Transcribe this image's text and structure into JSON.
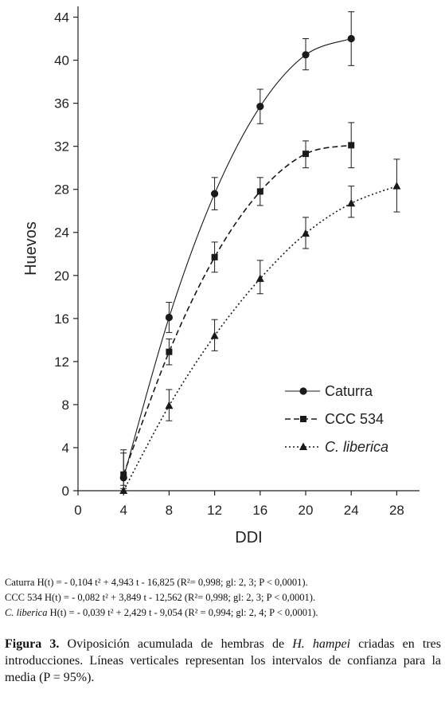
{
  "chart_data": {
    "type": "line",
    "xlabel": "DDI",
    "ylabel": "Huevos",
    "xlim": [
      0,
      30
    ],
    "ylim": [
      0,
      45
    ],
    "x_ticks": [
      0,
      4,
      8,
      12,
      16,
      20,
      24,
      28
    ],
    "y_ticks": [
      0,
      4,
      8,
      12,
      16,
      20,
      24,
      28,
      32,
      36,
      40,
      44
    ],
    "grid": false,
    "legend_position": "bottom-right",
    "series": [
      {
        "name": "Caturra",
        "marker": "circle",
        "line": "solid",
        "x": [
          4,
          8,
          12,
          16,
          20,
          24
        ],
        "y": [
          1.2,
          16.1,
          27.6,
          35.7,
          40.5,
          42.0
        ],
        "err_low": [
          0.2,
          14.7,
          26.1,
          34.1,
          39.1,
          39.5
        ],
        "err_high": [
          3.5,
          17.5,
          29.1,
          37.3,
          42.0,
          44.5
        ]
      },
      {
        "name": "CCC 534",
        "marker": "square",
        "line": "dashed",
        "x": [
          4,
          8,
          12,
          16,
          20,
          24
        ],
        "y": [
          1.5,
          12.9,
          21.7,
          27.8,
          31.3,
          32.1
        ],
        "err_low": [
          0.5,
          11.7,
          20.3,
          26.5,
          30.0,
          30.0
        ],
        "err_high": [
          3.8,
          14.1,
          23.1,
          29.1,
          32.5,
          34.2
        ]
      },
      {
        "name": "C. liberica",
        "marker": "triangle",
        "line": "dotted",
        "x": [
          4,
          8,
          12,
          16,
          20,
          24,
          28
        ],
        "y": [
          0.0,
          7.9,
          14.4,
          19.7,
          23.9,
          26.7,
          28.3
        ],
        "err_low": [
          0.0,
          6.5,
          13.0,
          18.3,
          22.5,
          25.4,
          25.9
        ],
        "err_high": [
          0.0,
          9.4,
          15.9,
          21.4,
          25.4,
          28.3,
          30.8
        ]
      }
    ]
  },
  "notes": {
    "line1": "Caturra H(t) = - 0,104 t² + 4,943 t - 16,825  (R²= 0,998; gl: 2, 3; P < 0,0001).",
    "line2": "CCC 534 H(t) = - 0,082 t² + 3,849 t - 12,562  (R²= 0,998; gl: 2, 3; P < 0,0001).",
    "line3_name": "C. liberica",
    "line3_rest": " H(t) = - 0,039 t² + 2,429 t -  9,054   (R² = 0,994; gl: 2, 4; P < 0,0001)."
  },
  "caption": {
    "label": "Figura 3.",
    "text_before": " Oviposición acumulada de hembras de ",
    "species": "H. hampei",
    "text_after": " criadas en tres introducciones. Líneas verticales representan los intervalos de confianza para la media (P = 95%)."
  },
  "colors": {
    "axis": "#222222",
    "series": "#1a1a1a"
  }
}
